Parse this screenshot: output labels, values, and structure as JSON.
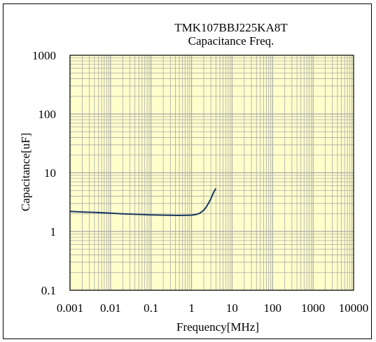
{
  "chart_data": {
    "type": "line",
    "title": "TMK107BBJ225KA8T",
    "subtitle": "Capacitance Freq.",
    "xlabel": "Frequency[MHz]",
    "ylabel": "Capacitance[uF]",
    "x_scale": "log",
    "y_scale": "log",
    "xlim": [
      0.001,
      10000
    ],
    "ylim": [
      0.1,
      1000
    ],
    "x_ticks": [
      "0.001",
      "0.01",
      "0.1",
      "1",
      "10",
      "100",
      "1000",
      "10000"
    ],
    "y_ticks": [
      "0.1",
      "1",
      "10",
      "100",
      "1000"
    ],
    "grid": true,
    "colors": {
      "plot_bg": "#ffffcc",
      "grid": "#a8a8a8",
      "line": "#17375e"
    },
    "series": [
      {
        "x": [
          0.001,
          0.002,
          0.005,
          0.01,
          0.02,
          0.05,
          0.1,
          0.2,
          0.5,
          1,
          1.3,
          1.6,
          2,
          2.3,
          2.6,
          3,
          3.3,
          3.6,
          4
        ],
        "y": [
          2.2,
          2.15,
          2.1,
          2.05,
          2.0,
          1.96,
          1.92,
          1.9,
          1.88,
          1.9,
          1.95,
          2.05,
          2.3,
          2.6,
          3.0,
          3.6,
          4.2,
          4.8,
          5.4
        ]
      }
    ]
  }
}
